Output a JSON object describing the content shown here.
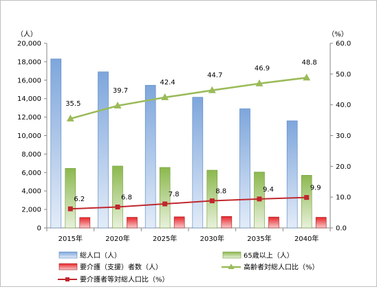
{
  "chart_data": {
    "type": "bar",
    "left_axis_unit": "（人）",
    "right_axis_unit": "（%）",
    "categories": [
      "2015年",
      "2020年",
      "2025年",
      "2030年",
      "2035年",
      "2040年"
    ],
    "ylim_left": [
      0,
      20000
    ],
    "yticks_left": [
      "0",
      "2,000",
      "4,000",
      "6,000",
      "8,000",
      "10,000",
      "12,000",
      "14,000",
      "16,000",
      "18,000",
      "20,000"
    ],
    "ylim_right": [
      0,
      60
    ],
    "yticks_right": [
      "0.0",
      "10.0",
      "20.0",
      "30.0",
      "40.0",
      "50.0",
      "60.0"
    ],
    "grid": false,
    "legend_position": "bottom",
    "bar_series": [
      {
        "name": "総人口（人）",
        "axis": "left",
        "color": "#8DB4E2",
        "values": [
          18300,
          16900,
          15450,
          14150,
          12900,
          11600
        ]
      },
      {
        "name": "65歳以上（人）",
        "axis": "left",
        "color": "#9BBB59",
        "values": [
          6450,
          6700,
          6550,
          6250,
          6050,
          5700
        ]
      },
      {
        "name": "要介護（支援）者数（人）",
        "axis": "left",
        "color": "#E03030",
        "values": [
          1130,
          1150,
          1200,
          1240,
          1180,
          1150
        ]
      }
    ],
    "line_series": [
      {
        "name": "高齢者対総人口比（%）",
        "axis": "right",
        "color": "#9BBB59",
        "values": [
          35.5,
          39.7,
          42.4,
          44.7,
          46.9,
          48.8
        ],
        "labels": [
          "35.5",
          "39.7",
          "42.4",
          "44.7",
          "46.9",
          "48.8"
        ]
      },
      {
        "name": "要介護者等対総人口比（%）",
        "axis": "right",
        "color": "#C0272D",
        "values": [
          6.2,
          6.8,
          7.8,
          8.8,
          9.4,
          9.9
        ],
        "labels": [
          "6.2",
          "6.8",
          "7.8",
          "8.8",
          "9.4",
          "9.9"
        ]
      }
    ]
  }
}
